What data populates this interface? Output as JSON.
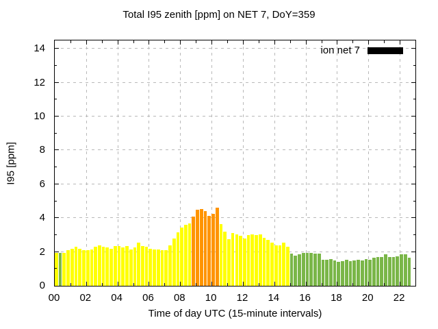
{
  "chart_data": {
    "type": "bar",
    "title": "Total I95 zenith [ppm] on NET 7, DoY=359",
    "xlabel": "Time of day UTC (15-minute intervals)",
    "ylabel": "I95 [ppm]",
    "series_name": "ion net 7",
    "legend_position": "top-right",
    "legend_swatch_color": "#000000",
    "grid": true,
    "ylim": [
      0,
      14.5
    ],
    "xlim_hours": [
      0,
      23
    ],
    "x_start": "00:00",
    "interval_minutes": 15,
    "x_tick_labels": [
      "00",
      "02",
      "04",
      "06",
      "08",
      "10",
      "12",
      "14",
      "16",
      "18",
      "20",
      "22"
    ],
    "x_tick_hours": [
      0,
      2,
      4,
      6,
      8,
      10,
      12,
      14,
      16,
      18,
      20,
      22
    ],
    "y_tick_values": [
      0,
      2,
      4,
      6,
      8,
      10,
      12,
      14
    ],
    "values": [
      1.95,
      1.95,
      1.95,
      2.1,
      2.2,
      2.3,
      2.2,
      2.1,
      2.1,
      2.15,
      2.3,
      2.4,
      2.3,
      2.25,
      2.2,
      2.35,
      2.35,
      2.25,
      2.35,
      2.15,
      2.25,
      2.55,
      2.35,
      2.3,
      2.2,
      2.15,
      2.15,
      2.1,
      2.1,
      2.4,
      2.8,
      3.15,
      3.45,
      3.6,
      3.7,
      4.1,
      4.5,
      4.55,
      4.4,
      4.15,
      4.25,
      4.6,
      3.65,
      3.2,
      2.75,
      3.1,
      3.05,
      2.95,
      2.8,
      3.0,
      3.05,
      3.0,
      3.05,
      2.85,
      2.7,
      2.55,
      2.4,
      2.4,
      2.55,
      2.3,
      1.9,
      1.8,
      1.85,
      1.95,
      1.95,
      1.95,
      1.9,
      1.9,
      1.55,
      1.55,
      1.6,
      1.5,
      1.4,
      1.45,
      1.55,
      1.45,
      1.5,
      1.55,
      1.5,
      1.6,
      1.55,
      1.65,
      1.7,
      1.7,
      1.85,
      1.7,
      1.7,
      1.75,
      1.85,
      1.85,
      1.65
    ],
    "bar_colors": [
      "Y",
      "G",
      "Y",
      "Y",
      "Y",
      "Y",
      "Y",
      "Y",
      "Y",
      "Y",
      "Y",
      "Y",
      "Y",
      "Y",
      "Y",
      "Y",
      "Y",
      "Y",
      "Y",
      "Y",
      "Y",
      "Y",
      "Y",
      "Y",
      "Y",
      "Y",
      "Y",
      "Y",
      "Y",
      "Y",
      "Y",
      "Y",
      "Y",
      "Y",
      "Y",
      "O",
      "O",
      "O",
      "O",
      "O",
      "O",
      "O",
      "Y",
      "Y",
      "Y",
      "Y",
      "Y",
      "Y",
      "Y",
      "Y",
      "Y",
      "Y",
      "Y",
      "Y",
      "Y",
      "Y",
      "Y",
      "Y",
      "Y",
      "Y",
      "G",
      "G",
      "G",
      "G",
      "G",
      "G",
      "G",
      "G",
      "G",
      "G",
      "G",
      "G",
      "G",
      "G",
      "G",
      "G",
      "G",
      "G",
      "G",
      "G",
      "G",
      "G",
      "G",
      "G",
      "G",
      "G",
      "G",
      "G",
      "G",
      "G",
      "G"
    ],
    "colors": {
      "yellow": "#ffff00",
      "green": "#7ab648",
      "orange": "#ff9400",
      "grid": "#b8b8b8",
      "axis": "#000000"
    }
  }
}
